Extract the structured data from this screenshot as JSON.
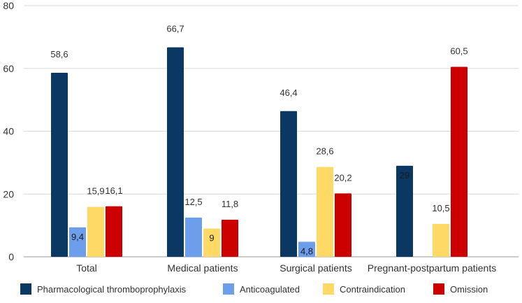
{
  "chart_data": {
    "type": "bar",
    "categories": [
      "Total",
      "Medical patients",
      "Surgical patients",
      "Pregnant-postpartum patients"
    ],
    "series": [
      {
        "name": "Pharmacological thromboprophylaxis",
        "color": "#0b3763",
        "values": [
          58.6,
          66.7,
          46.4,
          29
        ],
        "labels": [
          "58,6",
          "66,7",
          "46,4",
          "29"
        ]
      },
      {
        "name": "Anticoagulated",
        "color": "#6d9eeb",
        "values": [
          9.4,
          12.5,
          4.8,
          null
        ],
        "labels": [
          "9,4",
          "12,5",
          "4,8",
          ""
        ]
      },
      {
        "name": "Contraindication",
        "color": "#ffd966",
        "values": [
          15.9,
          9,
          28.6,
          10.5
        ],
        "labels": [
          "15,9",
          "9",
          "28,6",
          "10,5"
        ]
      },
      {
        "name": "Omission",
        "color": "#cc0000",
        "values": [
          16.1,
          11.8,
          20.2,
          60.5
        ],
        "labels": [
          "16,1",
          "11,8",
          "20,2",
          "60,5"
        ]
      }
    ],
    "y_ticks": [
      "0",
      "20",
      "40",
      "60",
      "80"
    ],
    "ylim": [
      0,
      80
    ],
    "grid": true,
    "legend": "bottom",
    "title": "",
    "xlabel": "",
    "ylabel": ""
  }
}
